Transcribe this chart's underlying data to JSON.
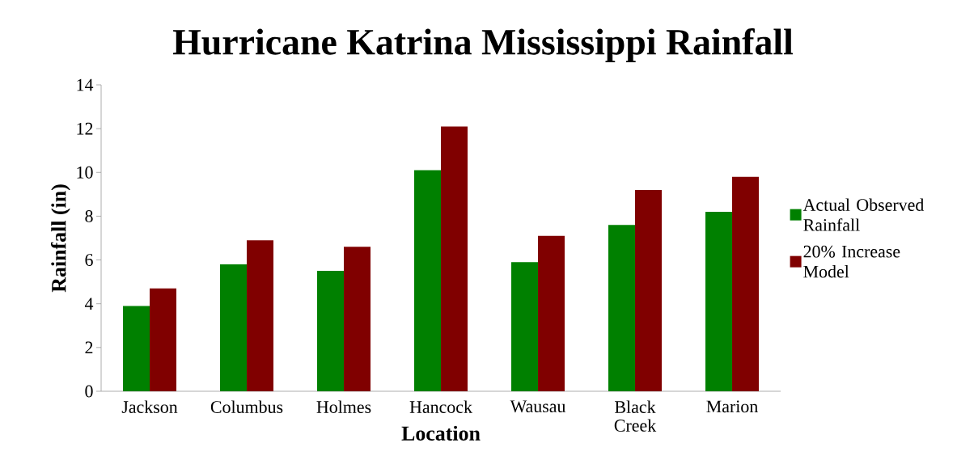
{
  "chart_data": {
    "type": "bar",
    "title": "Hurricane Katrina Mississippi Rainfall",
    "xlabel": "Location",
    "ylabel": "Rainfall (in)",
    "categories": [
      "Jackson",
      "Columbus",
      "Holmes",
      "Hancock",
      "Wausau",
      "Black Creek",
      "Marion"
    ],
    "series": [
      {
        "name": "Actual Observed Rainfall",
        "color": "#008000",
        "values": [
          3.9,
          5.8,
          5.5,
          10.1,
          5.9,
          7.6,
          8.2
        ]
      },
      {
        "name": "20% Increase Model",
        "color": "#800000",
        "values": [
          4.7,
          6.9,
          6.6,
          12.1,
          7.1,
          9.2,
          9.8
        ]
      }
    ],
    "ylim": [
      0,
      14
    ],
    "yticks": [
      0,
      2,
      4,
      6,
      8,
      10,
      12,
      14
    ],
    "grid": false,
    "legend": "right"
  }
}
